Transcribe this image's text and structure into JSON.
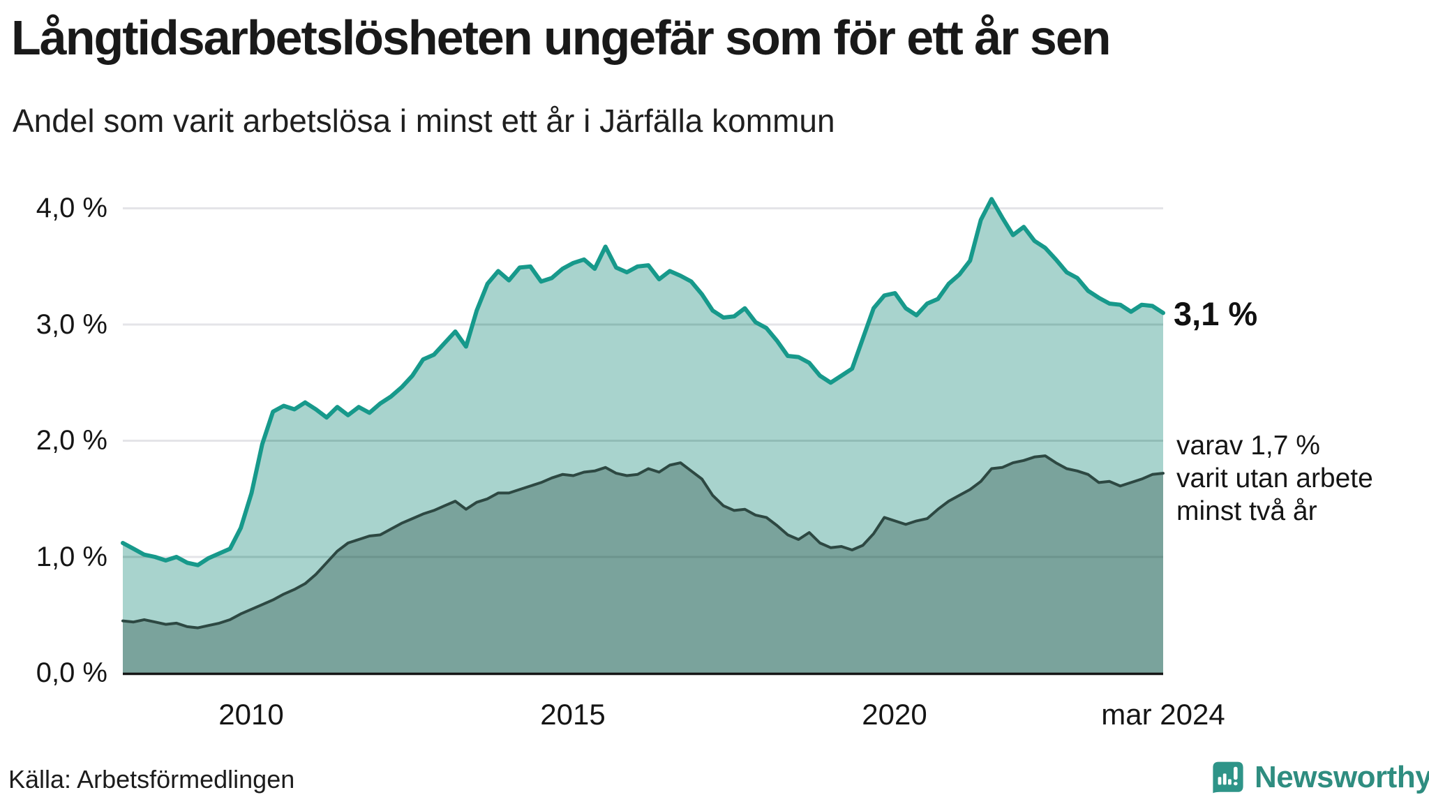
{
  "header": {
    "title": "Långtidsarbetslösheten ungefär som för ett år sen",
    "subtitle": "Andel som varit arbetslösa i minst ett år i Järfälla kommun"
  },
  "annotations": {
    "end_value_label": "3,1 %",
    "note_lines": [
      "varav 1,7 %",
      "varit utan arbete",
      "minst två år"
    ]
  },
  "footer": {
    "source": "Källa: Arbetsförmedlingen",
    "brand": "Newsworthy"
  },
  "colors": {
    "accent_teal": "#17998b",
    "area_light": "#a8d3cd",
    "area_dark": "#7aa39c",
    "line_dark": "#2d4842",
    "grid": "#e4e4e8",
    "axis": "#161616",
    "logo_teal": "#2e9488",
    "wordmark_teal": "#2f8d80"
  },
  "chart_data": {
    "type": "area",
    "title": "Långtidsarbetslösheten ungefär som för ett år sen",
    "subtitle": "Andel som varit arbetslösa i minst ett år i Järfälla kommun",
    "unit": "%",
    "x_start": "2008-01",
    "x_end": "2024-03",
    "interval_months": 2,
    "x_tick_labels": [
      "2010",
      "2015",
      "2020",
      "mar 2024"
    ],
    "y_ticks": [
      0,
      1,
      2,
      3,
      4
    ],
    "y_tick_labels": [
      "0,0 %",
      "1,0 %",
      "2,0 %",
      "3,0 %",
      "4,0 %"
    ],
    "ylim": [
      0,
      4.3
    ],
    "grid": true,
    "legend_position": "none",
    "end_values": {
      "total": "3,1 %",
      "subset": "1,7 %"
    },
    "series": [
      {
        "name": "Andel arbetslösa minst ett år",
        "color": "#17998b",
        "fill": "#a8d3cd",
        "line_width": 6,
        "values": [
          1.12,
          1.07,
          1.02,
          1.0,
          0.97,
          1.0,
          0.95,
          0.93,
          0.99,
          1.03,
          1.07,
          1.25,
          1.55,
          1.97,
          2.25,
          2.3,
          2.27,
          2.33,
          2.27,
          2.2,
          2.29,
          2.22,
          2.29,
          2.24,
          2.32,
          2.38,
          2.46,
          2.56,
          2.7,
          2.74,
          2.84,
          2.94,
          2.81,
          3.12,
          3.35,
          3.46,
          3.38,
          3.49,
          3.5,
          3.37,
          3.4,
          3.48,
          3.53,
          3.56,
          3.48,
          3.67,
          3.49,
          3.45,
          3.5,
          3.51,
          3.39,
          3.46,
          3.42,
          3.37,
          3.26,
          3.12,
          3.06,
          3.07,
          3.14,
          3.02,
          2.97,
          2.86,
          2.73,
          2.72,
          2.67,
          2.56,
          2.5,
          2.56,
          2.62,
          2.88,
          3.14,
          3.25,
          3.27,
          3.14,
          3.08,
          3.18,
          3.22,
          3.35,
          3.43,
          3.55,
          3.9,
          4.08,
          3.92,
          3.77,
          3.84,
          3.72,
          3.66,
          3.56,
          3.45,
          3.4,
          3.29,
          3.23,
          3.18,
          3.17,
          3.11,
          3.17,
          3.16,
          3.1
        ]
      },
      {
        "name": "varav utan arbete minst två år",
        "color": "#2d4842",
        "fill": "#7aa39c",
        "line_width": 4,
        "values": [
          0.45,
          0.44,
          0.46,
          0.44,
          0.42,
          0.43,
          0.4,
          0.39,
          0.41,
          0.43,
          0.46,
          0.51,
          0.55,
          0.59,
          0.63,
          0.68,
          0.72,
          0.77,
          0.85,
          0.95,
          1.05,
          1.12,
          1.15,
          1.18,
          1.19,
          1.24,
          1.29,
          1.33,
          1.37,
          1.4,
          1.44,
          1.48,
          1.41,
          1.47,
          1.5,
          1.55,
          1.55,
          1.58,
          1.61,
          1.64,
          1.68,
          1.71,
          1.7,
          1.73,
          1.74,
          1.77,
          1.72,
          1.7,
          1.71,
          1.76,
          1.73,
          1.79,
          1.81,
          1.74,
          1.67,
          1.53,
          1.44,
          1.4,
          1.41,
          1.36,
          1.34,
          1.27,
          1.19,
          1.15,
          1.21,
          1.12,
          1.08,
          1.09,
          1.06,
          1.1,
          1.2,
          1.34,
          1.31,
          1.28,
          1.31,
          1.33,
          1.41,
          1.48,
          1.53,
          1.58,
          1.65,
          1.76,
          1.77,
          1.81,
          1.83,
          1.86,
          1.87,
          1.81,
          1.76,
          1.74,
          1.71,
          1.64,
          1.65,
          1.61,
          1.64,
          1.67,
          1.71,
          1.72
        ]
      }
    ]
  }
}
